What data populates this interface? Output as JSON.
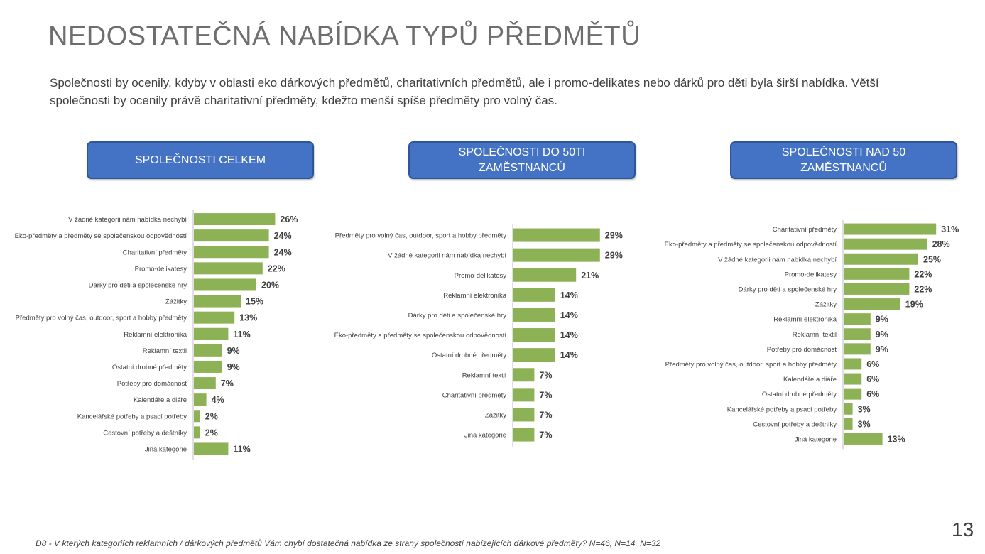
{
  "title": "NEDOSTATEČNÁ NABÍDKA TYPŮ PŘEDMĚTŮ",
  "subtitle": "Společnosti by ocenily, kdyby v oblasti eko dárkových předmětů, charitativních předmětů, ale i promo-delikates nebo dárků pro děti byla širší nabídka. Větší společnosti by ocenily právě charitativní předměty, kdežto menší spíše předměty pro volný čas.",
  "panels": [
    {
      "header": "SPOLEČNOSTI CELKEM"
    },
    {
      "header": "SPOLEČNOSTI DO 50TI ZAMĚSTNANCŮ"
    },
    {
      "header": "SPOLEČNOSTI NAD 50 ZAMĚSTNANCŮ"
    }
  ],
  "chart_data": [
    {
      "type": "bar",
      "orientation": "horizontal",
      "title": "SPOLEČNOSTI CELKEM",
      "categories": [
        "V žádné kategorii nám nabídka nechybí",
        "Eko-předměty a předměty se společenskou odpovědností",
        "Charitativní předměty",
        "Promo-delikatesy",
        "Dárky pro děti a společenské hry",
        "Zážitky",
        "Předměty pro volný čas, outdoor, sport a hobby předměty",
        "Reklamní elektronika",
        "Reklamní textil",
        "Ostatní drobné předměty",
        "Potřeby pro domácnost",
        "Kalendáře a diáře",
        "Kancelářské potřeby a psací potřeby",
        "Cestovní potřeby a deštníky",
        "Jiná kategorie"
      ],
      "values": [
        26,
        24,
        24,
        22,
        20,
        15,
        13,
        11,
        9,
        9,
        7,
        4,
        2,
        2,
        11
      ],
      "value_labels": [
        "26%",
        "24%",
        "24%",
        "22%",
        "20%",
        "15%",
        "13%",
        "11%",
        "9%",
        "9%",
        "7%",
        "4%",
        "2%",
        "2%",
        "11%"
      ],
      "unit": "%",
      "color": "#8db255"
    },
    {
      "type": "bar",
      "orientation": "horizontal",
      "title": "SPOLEČNOSTI DO 50TI ZAMĚSTNANCŮ",
      "categories": [
        "Předměty pro volný čas, outdoor, sport a hobby předměty",
        "V žádné kategorii nám nabídka nechybí",
        "Promo-delikatesy",
        "Reklamní elektronika",
        "Dárky pro děti a společenské hry",
        "Eko-předměty a předměty se společenskou odpovědností",
        "Ostatní drobné předměty",
        "Reklamní textil",
        "Charitativní předměty",
        "Zážitky",
        "Jiná kategorie"
      ],
      "values": [
        29,
        29,
        21,
        14,
        14,
        14,
        14,
        7,
        7,
        7,
        7
      ],
      "value_labels": [
        "29%",
        "29%",
        "21%",
        "14%",
        "14%",
        "14%",
        "14%",
        "7%",
        "7%",
        "7%",
        "7%"
      ],
      "unit": "%",
      "color": "#8db255"
    },
    {
      "type": "bar",
      "orientation": "horizontal",
      "title": "SPOLEČNOSTI NAD 50 ZAMĚSTNANCŮ",
      "categories": [
        "Charitativní předměty",
        "Eko-předměty a předměty se společenskou odpovědností",
        "V žádné kategorii nám nabídka nechybí",
        "Promo-delikatesy",
        "Dárky pro děti a společenské hry",
        "Zážitky",
        "Reklamní elektronika",
        "Reklamní textil",
        "Potřeby pro domácnost",
        "Předměty pro volný čas, outdoor, sport a hobby předměty",
        "Kalendáře a diáře",
        "Ostatní drobné předměty",
        "Kancelářské potřeby a psací potřeby",
        "Cestovní potřeby a deštníky",
        "Jiná kategorie"
      ],
      "values": [
        31,
        28,
        25,
        22,
        22,
        19,
        9,
        9,
        9,
        6,
        6,
        6,
        3,
        3,
        13
      ],
      "value_labels": [
        "31%",
        "28%",
        "25%",
        "22%",
        "22%",
        "19%",
        "9%",
        "9%",
        "9%",
        "6%",
        "6%",
        "6%",
        "3%",
        "3%",
        "13%"
      ],
      "unit": "%",
      "color": "#8db255"
    }
  ],
  "footnote": "D8 - V kterých kategoriích reklamních / dárkových předmětů Vám chybí dostatečná nabídka ze strany společností nabízejících dárkové předměty? N=46, N=14, N=32",
  "page_number": "13"
}
